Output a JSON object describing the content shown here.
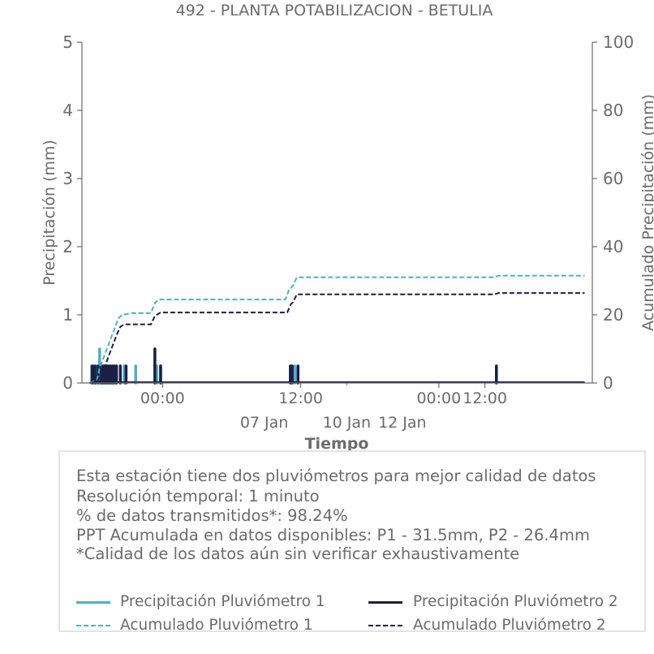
{
  "chart_data": {
    "type": "bar+line",
    "title": "492 - PLANTA POTABILIZACION - BETULIA",
    "xlabel": "Tiempo",
    "ylabel_left": "Precipitación (mm)",
    "ylabel_right": "Acumulado Precipitación (mm)",
    "ylim_left": [
      0,
      5
    ],
    "ylim_right": [
      0,
      100
    ],
    "yticks_left": [
      "0",
      "1",
      "2",
      "3",
      "4",
      "5"
    ],
    "yticks_right": [
      "0",
      "20",
      "40",
      "60",
      "80",
      "100"
    ],
    "xlim_hours": [
      -21,
      112
    ],
    "xticks": [
      {
        "hour": 0,
        "line1": "00:00",
        "line2": ""
      },
      {
        "hour": 36,
        "line1": "12:00",
        "line2": "07 Jan"
      },
      {
        "hour": 48,
        "line1": "",
        "line2": "10 Jan"
      },
      {
        "hour": 72,
        "line1": "00:00",
        "line2": "12 Jan"
      },
      {
        "hour": 84,
        "line1": "12:00",
        "line2": ""
      }
    ],
    "x_axis_hours_reference": "hour 0 = first 00:00 tick",
    "grid": false,
    "series": [
      {
        "name": "Precipitación Pluviómetro 1",
        "kind": "bar",
        "color": "#4fb0c6",
        "x_hours": [
          -18.5,
          -18.0,
          -17.5,
          -17.0,
          -16.4,
          -16.2,
          -15.8,
          -15.3,
          -14.9,
          -14.5,
          -14.0,
          -13.5,
          -13.0,
          -12.5,
          -12.0,
          -11.0,
          -10.0,
          -7.0,
          -2.0,
          -1.5,
          -0.5,
          33.5,
          34.5,
          87.0
        ],
        "values": [
          0.25,
          0.25,
          0.25,
          0.25,
          0.5,
          0.25,
          0.25,
          0.25,
          0.25,
          0.25,
          0.25,
          0.25,
          0.25,
          0.25,
          0.25,
          0.25,
          0.25,
          0.25,
          0.5,
          0.25,
          0.25,
          0.25,
          0.25,
          0.25
        ]
      },
      {
        "name": "Precipitación Pluviómetro 2",
        "kind": "bar",
        "color": "#1c1f44",
        "x_hours": [
          -18.3,
          -17.6,
          -16.8,
          -16.0,
          -15.5,
          -15.0,
          -14.5,
          -14.0,
          -13.5,
          -13.0,
          -12.5,
          -12.0,
          -11.0,
          -9.5,
          -2.0,
          -0.5,
          33.3,
          33.8,
          35.3,
          87.0
        ],
        "values": [
          0.25,
          0.25,
          0.25,
          0.25,
          0.25,
          0.25,
          0.25,
          0.25,
          0.25,
          0.25,
          0.25,
          0.25,
          0.25,
          0.25,
          0.5,
          0.25,
          0.25,
          0.25,
          0.25,
          0.25
        ]
      },
      {
        "name": "Acumulado Pluviómetro 1",
        "kind": "line",
        "dashed": true,
        "color": "#4fb0c6",
        "x_hours": [
          -19,
          -17,
          -16.5,
          -15.5,
          -14.5,
          -13.5,
          -12.5,
          -11.5,
          -10.5,
          -8,
          -3,
          -2,
          -1,
          0,
          32,
          33,
          34,
          35,
          86.5,
          87.5,
          110
        ],
        "values": [
          0,
          1,
          4,
          7,
          10,
          13,
          16,
          19,
          20,
          20.5,
          20.5,
          23.5,
          24.5,
          24.5,
          24.5,
          27.5,
          28.5,
          31.0,
          31.0,
          31.5,
          31.5
        ]
      },
      {
        "name": "Acumulado Pluviómetro 2",
        "kind": "line",
        "dashed": true,
        "color": "#1c1f44",
        "x_hours": [
          -19,
          -17,
          -16,
          -15,
          -14,
          -13,
          -12,
          -11,
          -10,
          -3,
          -2,
          -0.5,
          0,
          32.5,
          33.5,
          34,
          35,
          86.5,
          87.5,
          110
        ],
        "values": [
          0,
          0.5,
          2.5,
          5,
          8,
          11,
          14,
          16.5,
          17.2,
          17.2,
          19.7,
          20.7,
          20.7,
          20.7,
          23.2,
          23.7,
          26.0,
          26.0,
          26.4,
          26.4
        ]
      }
    ],
    "info_lines": [
      "Esta estación tiene dos pluviómetros para mejor calidad de datos",
      "Resolución temporal: 1 minuto",
      "% de datos transmitidos*: 98.24%",
      "PPT Acumulada en datos disponibles: P1 - 31.5mm, P2 - 26.4mm",
      "*Calidad de los datos aún sin verificar exhaustivamente"
    ],
    "legend": [
      {
        "label": "Precipitación Pluviómetro 1",
        "color": "#4fb0c6",
        "style": "solid"
      },
      {
        "label": "Precipitación Pluviómetro 2",
        "color": "#1c1f44",
        "style": "solid"
      },
      {
        "label": "Acumulado Pluviómetro 1",
        "color": "#4fb0c6",
        "style": "dashed"
      },
      {
        "label": "Acumulado Pluviómetro 2",
        "color": "#1c1f44",
        "style": "dashed"
      }
    ],
    "legend_position": "bottom"
  }
}
